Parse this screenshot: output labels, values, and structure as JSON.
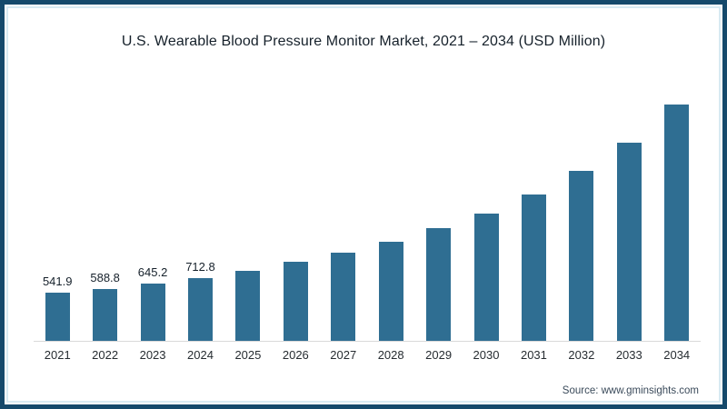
{
  "title": "U.S. Wearable Blood Pressure Monitor Market, 2021 – 2034 (USD Million)",
  "source": "Source: www.gminsights.com",
  "frame": {
    "border_color": "#15496b",
    "inner_line_color": "#d8eaf2",
    "background_color": "#ffffff"
  },
  "chart_data": {
    "type": "bar",
    "title": "U.S. Wearable Blood Pressure Monitor Market, 2021 – 2034 (USD Million)",
    "xlabel": "",
    "ylabel": "",
    "categories": [
      "2021",
      "2022",
      "2023",
      "2024",
      "2025",
      "2026",
      "2027",
      "2028",
      "2029",
      "2030",
      "2031",
      "2032",
      "2033",
      "2034"
    ],
    "values": [
      541.9,
      588.8,
      645.2,
      712.8,
      790,
      890,
      1000,
      1120,
      1270,
      1440,
      1650,
      1920,
      2240,
      2670
    ],
    "data_labels": [
      "541.9",
      "588.8",
      "645.2",
      "712.8",
      "",
      "",
      "",
      "",
      "",
      "",
      "",
      "",
      "",
      ""
    ],
    "ylim": [
      0,
      2820
    ],
    "grid": false,
    "y_axis_visible": false,
    "legend": "none",
    "bar_color": "#2f6e92",
    "axis_line_color": "#d9d9d9"
  }
}
